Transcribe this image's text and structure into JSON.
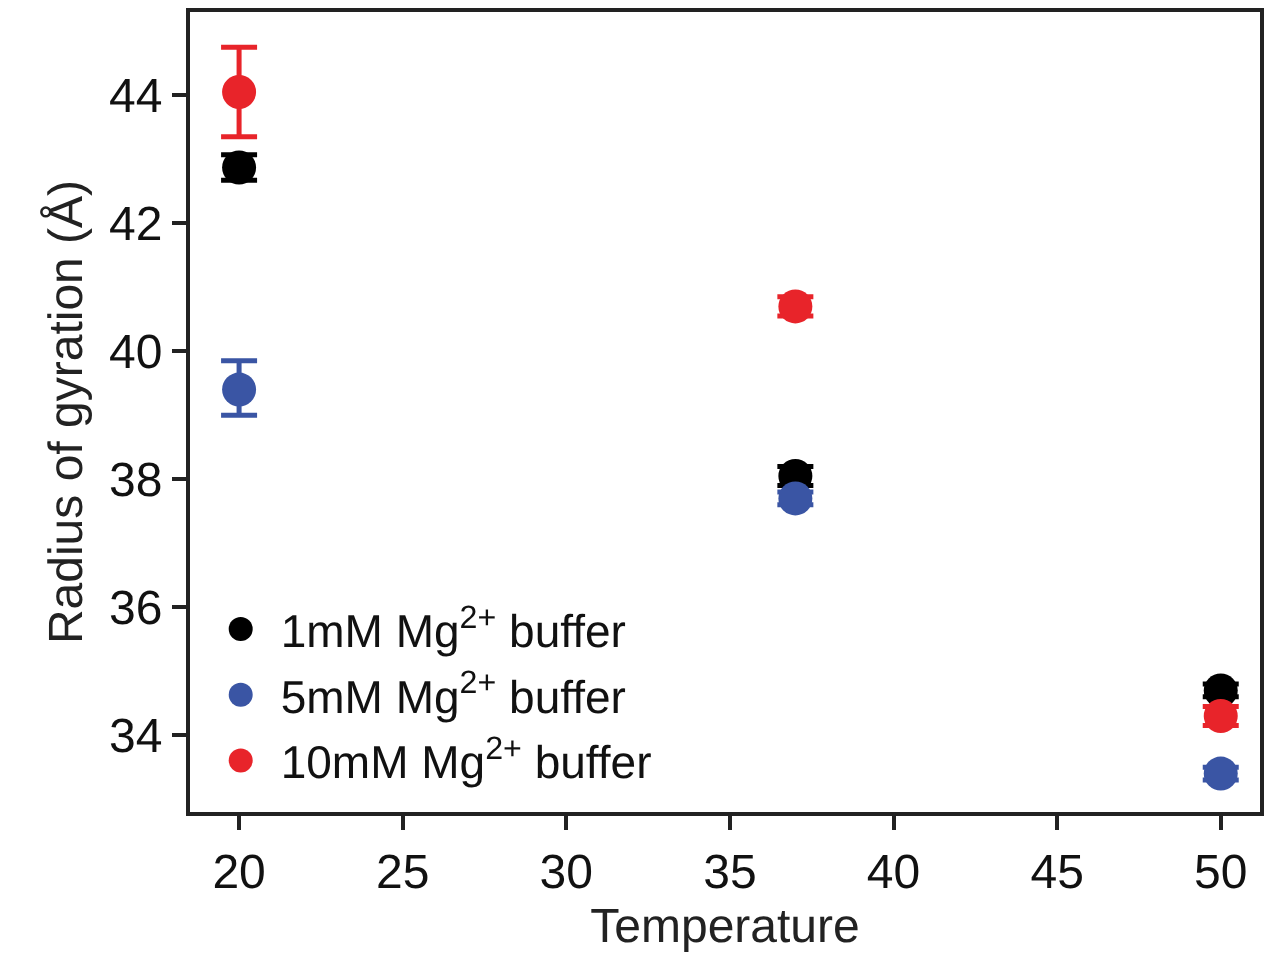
{
  "chart_data": {
    "type": "scatter",
    "xlabel": "Temperature",
    "ylabel": "Radius of gyration (Å)",
    "x": [
      20,
      37,
      50
    ],
    "series": [
      {
        "name": "1mM Mg$^{2+}$ buffer",
        "color": "#000000",
        "values": [
          42.87,
          38.05,
          34.7
        ],
        "errors": [
          0.2,
          0.15,
          0.1
        ]
      },
      {
        "name": "5mM Mg$^{2+}$ buffer",
        "color": "#3a55a4",
        "values": [
          39.4,
          37.7,
          33.4
        ],
        "errors": [
          [
            39.0,
            39.85
          ],
          0.1,
          0.1
        ]
      },
      {
        "name": "10mM Mg$^{2+}$ buffer",
        "color": "#e8242a",
        "values": [
          44.05,
          40.7,
          34.3
        ],
        "errors": [
          [
            43.35,
            44.75
          ],
          0.15,
          0.15
        ]
      }
    ],
    "xlim": [
      18.5,
      51.2
    ],
    "xticks": [
      20,
      25,
      30,
      35,
      40,
      45,
      50
    ],
    "ylim": [
      32.8,
      45.3
    ],
    "yticks": [
      34,
      36,
      38,
      40,
      42,
      44
    ],
    "grid": false,
    "legend": "bottom left",
    "marker": "circle"
  }
}
